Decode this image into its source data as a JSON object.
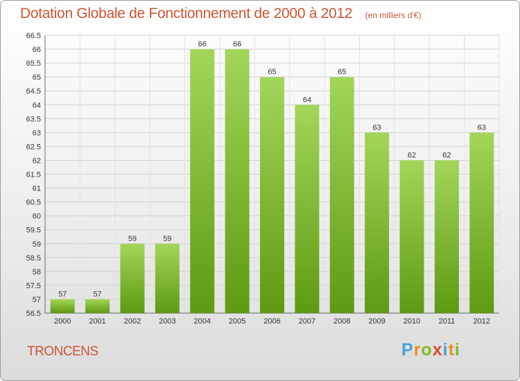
{
  "header": {
    "title": "Dotation Globale de Fonctionnement de 2000 à 2012",
    "unit": "(en milliers d'€)"
  },
  "commune": "TRONCENS",
  "logo": {
    "letters": [
      "P",
      "r",
      "o",
      "x",
      "i",
      "t",
      "i"
    ],
    "colors": [
      "#4aa0dc",
      "#f08a24",
      "#7dbb2a",
      "#e04a2a",
      "#4aa0dc",
      "#f08a24",
      "#7dbb2a"
    ]
  },
  "chart_data": {
    "type": "bar",
    "categories": [
      "2000",
      "2001",
      "2002",
      "2003",
      "2004",
      "2005",
      "2006",
      "2007",
      "2008",
      "2009",
      "2010",
      "2011",
      "2012"
    ],
    "values": [
      57,
      57,
      59,
      59,
      66,
      66,
      65,
      64,
      65,
      63,
      62,
      62,
      63
    ],
    "data_labels": [
      "57",
      "57",
      "59",
      "59",
      "66",
      "66",
      "65",
      "64",
      "65",
      "63",
      "62",
      "62",
      "63"
    ],
    "ylim": [
      56.5,
      66.5
    ],
    "y_ticks": [
      "56.5",
      "57",
      "57.5",
      "58",
      "58.5",
      "59",
      "59.5",
      "60",
      "60.5",
      "61",
      "61.5",
      "62",
      "62.5",
      "63",
      "63.5",
      "64",
      "64.5",
      "65",
      "65.5",
      "66",
      "66.5"
    ],
    "grid": true,
    "bar_color_top": "#a3d65a",
    "bar_color_bottom": "#5e9a12"
  }
}
